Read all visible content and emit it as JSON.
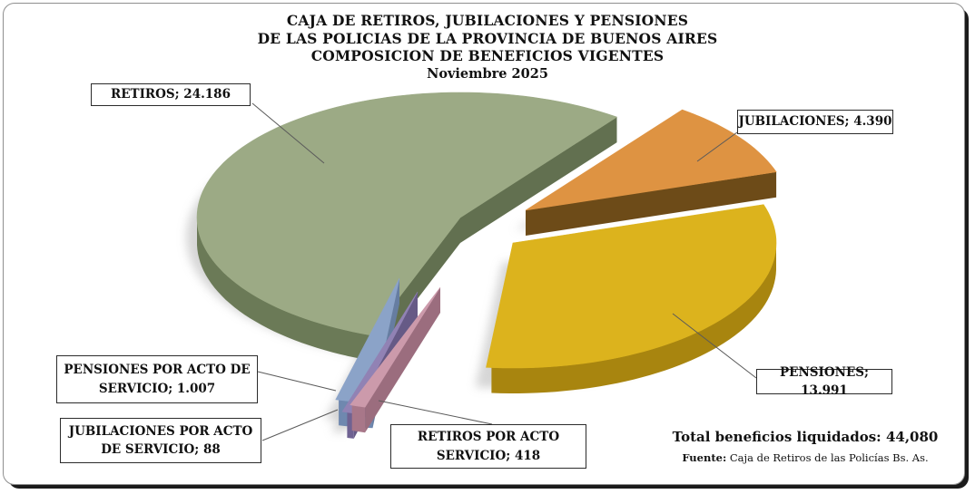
{
  "chart_data": {
    "type": "pie",
    "style": "3d-exploded",
    "title_lines": [
      "CAJA DE RETIROS, JUBILACIONES Y PENSIONES",
      "DE LAS POLICIAS DE LA PROVINCIA DE BUENOS AIRES",
      "COMPOSICION DE BENEFICIOS VIGENTES",
      "Noviembre 2025"
    ],
    "legend_position": "none",
    "label_style": "boxed-callouts-with-leader-lines",
    "slices": [
      {
        "id": "retiros",
        "label": "RETIROS",
        "value": 24186,
        "value_text": "24.186",
        "label_lines": [
          "RETIROS; 24.186"
        ],
        "color_top": "#9CAA85",
        "color_side": "#6B7A57"
      },
      {
        "id": "jubilaciones",
        "label": "JUBILACIONES",
        "value": 4390,
        "value_text": "4.390",
        "label_lines": [
          "JUBILACIONES; 4.390"
        ],
        "color_top": "#DE9342",
        "color_side": "#77521A"
      },
      {
        "id": "pensiones",
        "label": "PENSIONES",
        "value": 13991,
        "value_text": "13.991",
        "label_lines": [
          "PENSIONES; 13.991"
        ],
        "color_top": "#DCB31D",
        "color_side": "#A8850F"
      },
      {
        "id": "pensiones-acto",
        "label": "PENSIONES POR ACTO DE SERVICIO",
        "value": 1007,
        "value_text": "1.007",
        "label_lines": [
          "PENSIONES POR ACTO DE",
          "SERVICIO;  1.007"
        ],
        "color_top": "#8BA3C8",
        "color_side": "#6F88AF"
      },
      {
        "id": "jubilaciones-acto",
        "label": "JUBILACIONES POR ACTO DE SERVICIO",
        "value": 88,
        "value_text": "88",
        "label_lines": [
          "JUBILACIONES POR ACTO",
          "DE SERVICIO;  88"
        ],
        "color_top": "#9182B4",
        "color_side": "#6F6292"
      },
      {
        "id": "retiros-acto",
        "label": "RETIROS POR ACTO SERVICIO",
        "value": 418,
        "value_text": "418",
        "label_lines": [
          "RETIROS POR ACTO",
          "SERVICIO; 418"
        ],
        "color_top": "#CC9AAB",
        "color_side": "#A87789"
      }
    ],
    "total_value": 44080,
    "total_label": "Total beneficios liquidados: 44,080",
    "source_label": "Fuente:",
    "source_text": "Caja de Retiros de las Policías Bs. As.",
    "background_color": "#FFFFFF",
    "shadow_color": "#B5B5B5"
  }
}
